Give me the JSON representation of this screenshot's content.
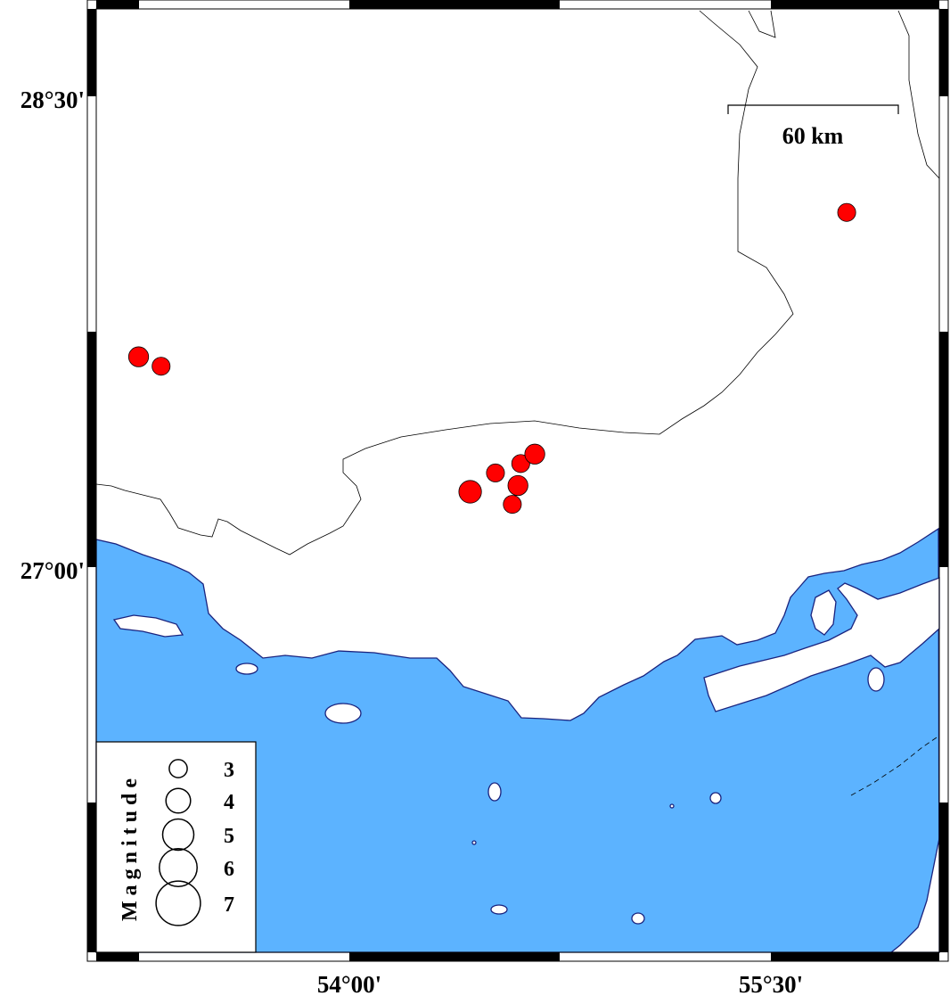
{
  "map": {
    "colors": {
      "sea": "#5cb3ff",
      "land": "#ffffff",
      "coastline": "#1a237e",
      "border": "#000000",
      "event": "#ff0000"
    },
    "axes": {
      "left_labels": [
        {
          "text": "28°30'",
          "lat": 28.5
        },
        {
          "text": "27°00'",
          "lat": 27.0
        }
      ],
      "bottom_labels": [
        {
          "text": "54°00'",
          "lon": 54.0
        },
        {
          "text": "55°30'",
          "lon": 55.5
        }
      ]
    },
    "scale_bar": {
      "label": "60 km"
    },
    "legend": {
      "title": "Magnitude",
      "entries": [
        {
          "label": "3",
          "mag": 3
        },
        {
          "label": "4",
          "mag": 4
        },
        {
          "label": "5",
          "mag": 5
        },
        {
          "label": "6",
          "mag": 6
        },
        {
          "label": "7",
          "mag": 7
        }
      ]
    },
    "events": [
      {
        "lon": 53.25,
        "lat": 27.67,
        "mag": 3.3
      },
      {
        "lon": 53.33,
        "lat": 27.64,
        "mag": 3.0
      },
      {
        "lon": 55.77,
        "lat": 28.13,
        "mag": 3.0
      },
      {
        "lon": 54.43,
        "lat": 27.24,
        "mag": 3.7
      },
      {
        "lon": 54.52,
        "lat": 27.3,
        "mag": 3.0
      },
      {
        "lon": 54.61,
        "lat": 27.33,
        "mag": 3.0
      },
      {
        "lon": 54.66,
        "lat": 27.36,
        "mag": 3.3
      },
      {
        "lon": 54.6,
        "lat": 27.26,
        "mag": 3.3
      },
      {
        "lon": 54.58,
        "lat": 27.2,
        "mag": 3.0
      }
    ]
  }
}
